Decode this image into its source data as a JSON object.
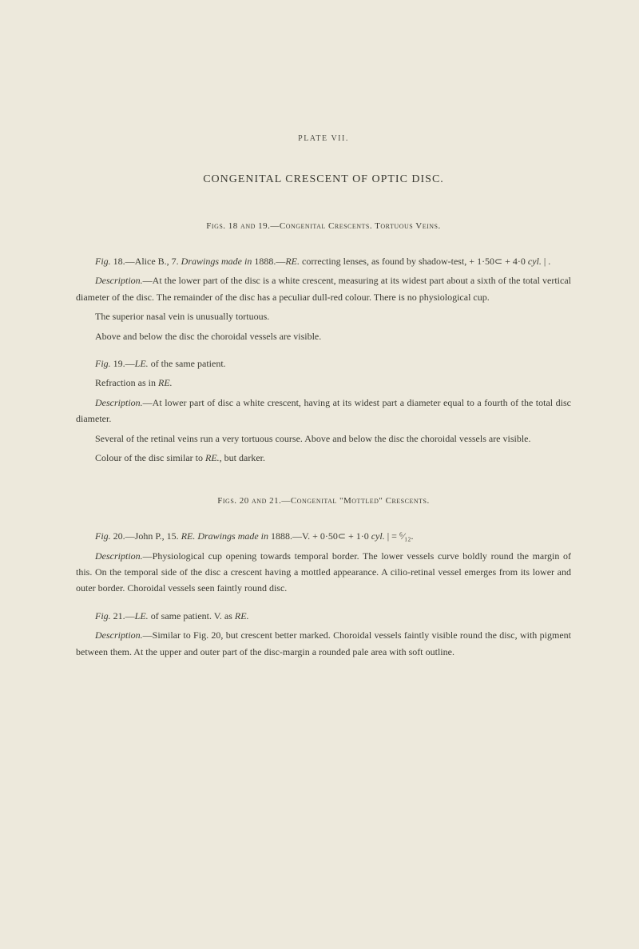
{
  "plate_label": "PLATE VII.",
  "main_title": "CONGENITAL CRESCENT OF OPTIC DISC.",
  "section1": {
    "title": "Figs. 18 and 19.—Congenital Crescents.   Tortuous Veins.",
    "p1_a": "Fig.",
    "p1_b": " 18.—Alice B., 7.   ",
    "p1_c": "Drawings made in",
    "p1_d": " 1888.—",
    "p1_e": "RE.",
    "p1_f": " correcting lenses, as found by shadow-test,  + 1·50⊂ + 4·0 ",
    "p1_g": "cyl.",
    "p1_h": " | .",
    "p2_a": "Description.",
    "p2_b": "—At the lower part of the disc is a white crescent, measuring at its widest part about a sixth of the total vertical diameter of the disc.   The remainder of the disc has a peculiar dull-red colour.   There is no physiological cup.",
    "p3": "The superior nasal vein is unusually tortuous.",
    "p4": "Above and below the disc the choroidal vessels are visible.",
    "p5_a": "Fig.",
    "p5_b": " 19.—",
    "p5_c": "LE.",
    "p5_d": " of the same patient.",
    "p6_a": "Refraction as in ",
    "p6_b": "RE.",
    "p7_a": "Description.",
    "p7_b": "—At lower part of disc a white crescent, having at its widest part a diameter equal to a fourth of the total disc diameter.",
    "p8": "Several of the retinal veins run a very tortuous course.   Above and below the disc the choroidal vessels are visible.",
    "p9_a": "Colour of the disc similar to ",
    "p9_b": "RE.",
    "p9_c": ", but darker."
  },
  "section2": {
    "title": "Figs. 20 and 21.—Congenital \"Mottled\" Crescents.",
    "p1_a": "Fig.",
    "p1_b": " 20.—John P., 15.   ",
    "p1_c": "RE.   Drawings made in",
    "p1_d": " 1888.—V.  + 0·50⊂ + 1·0 ",
    "p1_e": "cyl.",
    "p1_f": " | = ⁶⁄₁₂.",
    "p2_a": "Description.",
    "p2_b": "—Physiological cup opening towards temporal border.   The lower vessels curve boldly round the margin of this.   On the temporal side of the disc a crescent having a mottled appearance.    A cilio-retinal vessel emerges from its lower and outer border. Choroidal vessels seen faintly round disc.",
    "p3_a": "Fig.",
    "p3_b": " 21.—",
    "p3_c": "LE.",
    "p3_d": " of same patient.   V. as ",
    "p3_e": "RE.",
    "p4_a": "Description.",
    "p4_b": "—Similar to Fig. 20, but crescent better marked.   Choroidal vessels faintly visible round the disc, with pigment between them.   At the upper and outer part of the disc-margin a rounded pale area with soft outline."
  }
}
